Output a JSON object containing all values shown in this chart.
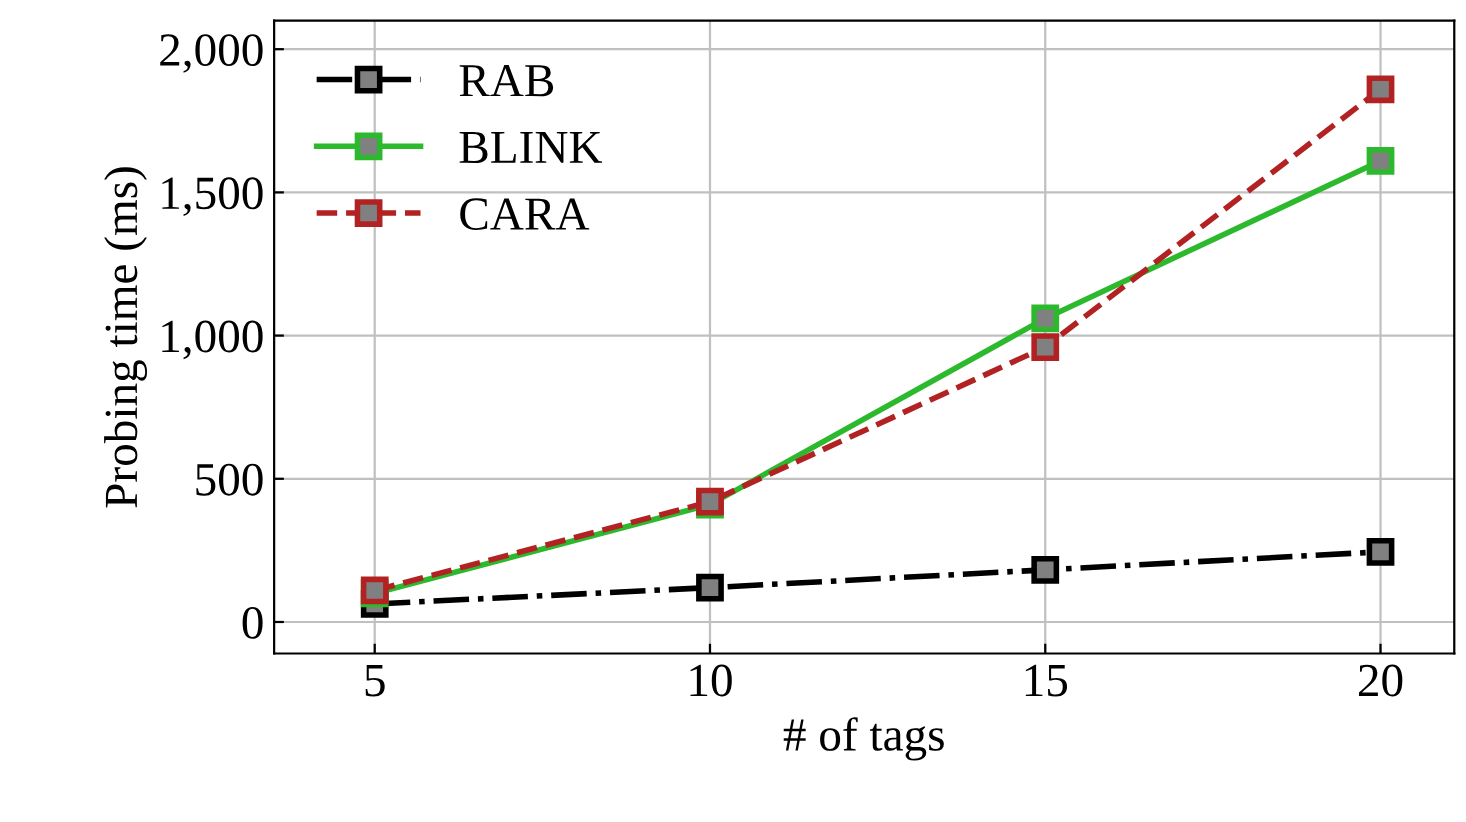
{
  "chart_data": {
    "type": "line",
    "xlabel": "# of tags",
    "ylabel": "Probing time (ms)",
    "x": [
      5,
      10,
      15,
      20
    ],
    "series": [
      {
        "name": "RAB",
        "color": "#000000",
        "values": [
          63,
          120,
          182,
          245
        ],
        "line_style": "dashdot"
      },
      {
        "name": "BLINK",
        "color": "#2db92d",
        "values": [
          100,
          410,
          1060,
          1610
        ],
        "line_style": "solid"
      },
      {
        "name": "CARA",
        "color": "#b22222",
        "values": [
          110,
          420,
          960,
          1860
        ],
        "line_style": "dashed"
      }
    ],
    "xlim": [
      3.5,
      21.1
    ],
    "ylim": [
      -110,
      2100
    ],
    "xticks": [
      5,
      10,
      15,
      20
    ],
    "yticks": [
      {
        "value": 0,
        "label": "0"
      },
      {
        "value": 500,
        "label": "500"
      },
      {
        "value": 1000,
        "label": "1,000"
      },
      {
        "value": 1500,
        "label": "1,500"
      },
      {
        "value": 2000,
        "label": "2,000"
      }
    ],
    "grid": true,
    "legend": "top left",
    "marker": "square"
  }
}
